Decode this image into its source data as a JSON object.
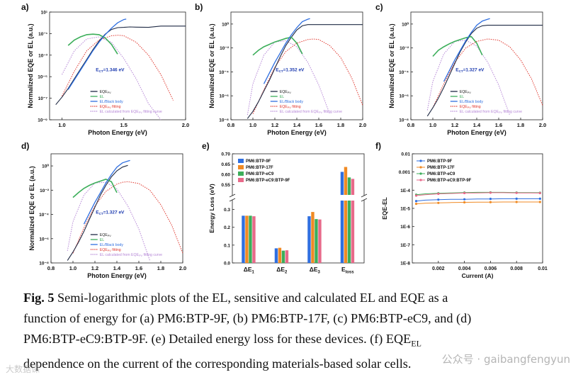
{
  "figure": {
    "caption_prefix": "Fig. 5",
    "caption_line1": " Semi-logarithmic plots of the EL, sensitive and calculated EL and EQE as a",
    "caption_line2": "function of energy for (a) PM6:BTP-9F, (b) PM6:BTP-17F, (c) PM6:BTP-eC9, and (d)",
    "caption_line3_pre": "PM6:BTP-eC9:BTP-9F. (e) Detailed energy loss for these devices. (f) EQE",
    "caption_line3_sub": "EL",
    "caption_line4": "dependence on the current of the corresponding materials-based solar cells.",
    "watermark": "公众号 · gaibangfengyun",
    "watermark2": "大数据课"
  },
  "colors": {
    "eqe": "#1f2a44",
    "el": "#3cae5a",
    "el_bb": "#2f6fe0",
    "fit": "#e0382f",
    "calc": "#b586d6",
    "s1": "#2f6fe0",
    "s2": "#f08a24",
    "s3": "#3cae5a",
    "s4": "#e86a8a"
  },
  "chart_data": [
    {
      "panel": "a",
      "type": "line",
      "scale_y": "log",
      "xlabel": "Photon Energy (eV)",
      "ylabel": "Normalized EQE or EL (a.u.)",
      "xlim": [
        0.9,
        2.0
      ],
      "ylim_exp": [
        -9,
        1
      ],
      "xticks": [
        "1.0",
        "1.5",
        "2.0"
      ],
      "xtick_values": [
        1.0,
        1.5,
        2.0
      ],
      "yticks": [
        "10⁻⁹",
        "10⁻⁷",
        "10⁻⁵",
        "10⁻³",
        "10⁻¹",
        "10¹"
      ],
      "ytick_exps": [
        -9,
        -7,
        -5,
        -3,
        -1,
        1
      ],
      "ect_label": "E",
      "ect_sub": "CT",
      "ect_value": "=1.346 eV",
      "legend": [
        "EQE",
        "EL",
        "EL/Black body",
        "EQE",
        "EL calculated from EQE",
        " fitting curve"
      ],
      "legend_subs": [
        "PV",
        "",
        "",
        "PV",
        "PV",
        ""
      ],
      "legend_suffix": [
        "",
        "",
        "",
        " fitting",
        "",
        ""
      ],
      "eqe_x": [
        0.95,
        1.0,
        1.05,
        1.1,
        1.15,
        1.2,
        1.25,
        1.3,
        1.35,
        1.4,
        1.45,
        1.5,
        1.55,
        1.6,
        1.7,
        1.8,
        1.9,
        2.0
      ],
      "eqe_log": [
        -7.6,
        -6.9,
        -6.1,
        -5.2,
        -4.3,
        -3.4,
        -2.5,
        -1.7,
        -1.05,
        -0.62,
        -0.45,
        -0.42,
        -0.38,
        -0.4,
        -0.42,
        -0.3,
        -0.3,
        -0.3
      ],
      "el_x": [
        1.05,
        1.1,
        1.15,
        1.2,
        1.25,
        1.3,
        1.35,
        1.4,
        1.45
      ],
      "el_log": [
        -2.1,
        -1.6,
        -1.3,
        -1.1,
        -1.05,
        -1.1,
        -1.4,
        -2.0,
        -2.9
      ],
      "elbb_x": [
        1.05,
        1.1,
        1.15,
        1.2,
        1.25,
        1.3,
        1.35,
        1.4,
        1.45,
        1.5,
        1.52
      ],
      "elbb_log": [
        -6.2,
        -5.3,
        -4.4,
        -3.5,
        -2.6,
        -1.8,
        -1.1,
        -0.5,
        0.0,
        0.3,
        0.35
      ],
      "fit_x": [
        1.0,
        1.1,
        1.2,
        1.3,
        1.4,
        1.45,
        1.5,
        1.6,
        1.7,
        1.8,
        1.9
      ],
      "fit_log": [
        -6.8,
        -4.5,
        -2.6,
        -1.6,
        -1.2,
        -1.15,
        -1.2,
        -1.8,
        -3.0,
        -4.8,
        -7.2
      ],
      "calc_x": [
        1.0,
        1.1,
        1.2,
        1.3,
        1.4,
        1.5,
        1.6,
        1.7,
        1.8
      ],
      "calc_log": [
        -4.8,
        -2.6,
        -1.5,
        -1.3,
        -1.8,
        -3.3,
        -5.2,
        -7.5,
        -9.0
      ]
    },
    {
      "panel": "b",
      "type": "line",
      "scale_y": "log",
      "xlabel": "Photon Energy (eV)",
      "ylabel": "Normalized EQE or EL (a.u.)",
      "xlim": [
        0.8,
        2.0
      ],
      "ylim_exp": [
        -8,
        1
      ],
      "xticks": [
        "0.8",
        "1.0",
        "1.2",
        "1.4",
        "1.6",
        "1.8",
        "2.0"
      ],
      "xtick_values": [
        0.8,
        1.0,
        1.2,
        1.4,
        1.6,
        1.8,
        2.0
      ],
      "yticks": [
        "10⁻⁸",
        "10⁻⁶",
        "10⁻⁴",
        "10⁻²",
        "10⁰"
      ],
      "ytick_exps": [
        -8,
        -6,
        -4,
        -2,
        0
      ],
      "ect_label": "E",
      "ect_sub": "CT",
      "ect_value": "=1.352 eV",
      "legend": [
        "EQE",
        "EL",
        "EL/Black body",
        "EQE",
        "EL calculated from EQE",
        " fitting curve"
      ],
      "legend_subs": [
        "PV",
        "",
        "",
        "PV",
        "PV",
        ""
      ],
      "legend_suffix": [
        "",
        "",
        "",
        " fitting",
        "",
        ""
      ],
      "eqe_x": [
        0.95,
        1.0,
        1.05,
        1.1,
        1.15,
        1.2,
        1.25,
        1.3,
        1.35,
        1.4,
        1.45,
        1.5,
        1.6,
        1.7,
        1.8,
        1.9,
        2.0
      ],
      "eqe_log": [
        -7.9,
        -7.3,
        -6.5,
        -5.6,
        -4.7,
        -3.7,
        -2.7,
        -1.8,
        -1.1,
        -0.5,
        -0.15,
        -0.05,
        -0.05,
        -0.05,
        -0.05,
        -0.05,
        -0.05
      ],
      "el_x": [
        1.0,
        1.05,
        1.1,
        1.15,
        1.2,
        1.25,
        1.3,
        1.35,
        1.4,
        1.45
      ],
      "el_log": [
        -2.6,
        -2.2,
        -1.9,
        -1.7,
        -1.5,
        -1.35,
        -1.2,
        -1.1,
        -1.6,
        -2.5
      ],
      "elbb_x": [
        1.1,
        1.15,
        1.2,
        1.25,
        1.3,
        1.35,
        1.4,
        1.45,
        1.5,
        1.52
      ],
      "elbb_log": [
        -5.0,
        -4.1,
        -3.2,
        -2.4,
        -1.6,
        -0.9,
        -0.3,
        0.2,
        0.4,
        0.45
      ],
      "fit_x": [
        1.0,
        1.1,
        1.2,
        1.3,
        1.4,
        1.5,
        1.55,
        1.6,
        1.7,
        1.8,
        1.9,
        2.0
      ],
      "fit_log": [
        -7.5,
        -5.5,
        -3.6,
        -2.3,
        -1.6,
        -1.3,
        -1.25,
        -1.3,
        -1.8,
        -2.8,
        -4.5,
        -6.8
      ],
      "calc_x": [
        0.95,
        1.0,
        1.1,
        1.2,
        1.3,
        1.4,
        1.5,
        1.6,
        1.7
      ],
      "calc_log": [
        -7.6,
        -5.0,
        -2.6,
        -1.5,
        -1.4,
        -1.9,
        -3.2,
        -5.1,
        -7.5
      ]
    },
    {
      "panel": "c",
      "type": "line",
      "scale_y": "log",
      "xlabel": "Photon Energy (eV)",
      "ylabel": "Normalized EQE or EL (a.u.)",
      "xlim": [
        0.8,
        2.0
      ],
      "ylim_exp": [
        -8,
        1
      ],
      "xticks": [
        "0.8",
        "1.0",
        "1.2",
        "1.4",
        "1.6",
        "1.8",
        "2.0"
      ],
      "xtick_values": [
        0.8,
        1.0,
        1.2,
        1.4,
        1.6,
        1.8,
        2.0
      ],
      "yticks": [
        "10⁻⁸",
        "10⁻⁶",
        "10⁻⁴",
        "10⁻²",
        "10⁰"
      ],
      "ytick_exps": [
        -8,
        -6,
        -4,
        -2,
        0
      ],
      "ect_label": "E",
      "ect_sub": "CT",
      "ect_value": "=1.327 eV",
      "legend": [
        "EQE",
        "EL",
        "EL/Black body",
        "EQE",
        "EL calculated from EQE",
        " fitting curve"
      ],
      "legend_subs": [
        "PV",
        "",
        "",
        "PV",
        "PV",
        ""
      ],
      "legend_suffix": [
        "",
        "",
        "",
        " fitting",
        "",
        ""
      ],
      "eqe_x": [
        0.95,
        1.0,
        1.05,
        1.1,
        1.15,
        1.2,
        1.25,
        1.3,
        1.35,
        1.4,
        1.45,
        1.5,
        1.6,
        1.7,
        1.8,
        1.9,
        2.0
      ],
      "eqe_log": [
        -7.7,
        -7.0,
        -6.2,
        -5.3,
        -4.3,
        -3.3,
        -2.3,
        -1.5,
        -0.8,
        -0.35,
        -0.15,
        -0.1,
        -0.1,
        -0.1,
        -0.1,
        -0.1,
        -0.1
      ],
      "el_x": [
        1.0,
        1.05,
        1.1,
        1.15,
        1.2,
        1.25,
        1.3,
        1.35,
        1.4,
        1.45
      ],
      "el_log": [
        -2.7,
        -2.2,
        -1.9,
        -1.65,
        -1.45,
        -1.3,
        -1.15,
        -1.05,
        -1.6,
        -2.6
      ],
      "elbb_x": [
        1.1,
        1.15,
        1.2,
        1.25,
        1.3,
        1.35,
        1.4,
        1.45,
        1.5,
        1.52
      ],
      "elbb_log": [
        -4.8,
        -3.9,
        -3.0,
        -2.2,
        -1.4,
        -0.7,
        -0.1,
        0.25,
        0.4,
        0.45
      ],
      "fit_x": [
        1.0,
        1.1,
        1.2,
        1.3,
        1.4,
        1.5,
        1.6,
        1.7,
        1.8,
        1.9,
        2.0
      ],
      "fit_log": [
        -7.0,
        -5.0,
        -3.2,
        -2.0,
        -1.45,
        -1.25,
        -1.35,
        -1.9,
        -3.0,
        -4.6,
        -6.8
      ],
      "calc_x": [
        0.95,
        1.0,
        1.1,
        1.2,
        1.3,
        1.4,
        1.5,
        1.6,
        1.7
      ],
      "calc_log": [
        -7.2,
        -4.8,
        -2.5,
        -1.45,
        -1.35,
        -1.85,
        -3.2,
        -5.1,
        -7.6
      ]
    },
    {
      "panel": "d",
      "type": "line",
      "scale_y": "log",
      "xlabel": "Photon Energy (eV)",
      "ylabel": "Normalized EQE or EL (a.u.)",
      "xlim": [
        0.8,
        2.0
      ],
      "ylim_exp": [
        -8,
        1
      ],
      "xticks": [
        "0.8",
        "1.0",
        "1.2",
        "1.4",
        "1.6",
        "1.8",
        "2.0"
      ],
      "xtick_values": [
        0.8,
        1.0,
        1.2,
        1.4,
        1.6,
        1.8,
        2.0
      ],
      "yticks": [
        "10⁻⁸",
        "10⁻⁶",
        "10⁻⁴",
        "10⁻²",
        "10⁰"
      ],
      "ytick_exps": [
        -8,
        -6,
        -4,
        -2,
        0
      ],
      "ect_label": "E",
      "ect_sub": "CT",
      "ect_value": "=1.327 eV",
      "legend": [
        "EQE",
        "EL",
        "EL/Black body",
        "EQE",
        "EL calculated from EQE",
        " fitting curve"
      ],
      "legend_subs": [
        "PV",
        "",
        "",
        "PV",
        "PV",
        ""
      ],
      "legend_suffix": [
        "",
        "",
        "",
        " fitting",
        "",
        ""
      ],
      "eqe_x": [
        0.95,
        1.0,
        1.05,
        1.1,
        1.15,
        1.2,
        1.25,
        1.3,
        1.35,
        1.4,
        1.45,
        1.5
      ],
      "eqe_log": [
        -7.8,
        -7.1,
        -6.3,
        -5.4,
        -4.4,
        -3.4,
        -2.4,
        -1.6,
        -0.9,
        -0.4,
        -0.1,
        0.05
      ],
      "el_x": [
        1.0,
        1.05,
        1.1,
        1.15,
        1.2,
        1.25,
        1.3,
        1.35,
        1.4
      ],
      "el_log": [
        -2.6,
        -2.2,
        -1.85,
        -1.6,
        -1.4,
        -1.25,
        -1.1,
        -1.3,
        -2.2
      ],
      "elbb_x": [
        1.1,
        1.15,
        1.2,
        1.25,
        1.3,
        1.35,
        1.4,
        1.45,
        1.5,
        1.52
      ],
      "elbb_log": [
        -4.8,
        -3.9,
        -3.0,
        -2.2,
        -1.4,
        -0.7,
        -0.1,
        0.25,
        0.4,
        0.45
      ],
      "fit_x": [
        1.0,
        1.1,
        1.2,
        1.3,
        1.4,
        1.45,
        1.5,
        1.6,
        1.7,
        1.8,
        1.9,
        2.0
      ],
      "fit_log": [
        -7.2,
        -5.1,
        -3.3,
        -2.1,
        -1.5,
        -1.35,
        -1.3,
        -1.45,
        -2.0,
        -3.2,
        -4.9,
        -7.2
      ],
      "calc_x": [
        0.95,
        1.0,
        1.1,
        1.2,
        1.3,
        1.4,
        1.5,
        1.6,
        1.7
      ],
      "calc_log": [
        -7.0,
        -4.6,
        -2.4,
        -1.4,
        -1.35,
        -1.9,
        -3.3,
        -5.2,
        -7.8
      ]
    },
    {
      "panel": "e",
      "type": "bar",
      "ylabel": "Energy Loss (eV)",
      "categories": [
        "ΔE",
        "ΔE",
        "ΔE",
        "E"
      ],
      "category_subs": [
        "1",
        "2",
        "3",
        "loss"
      ],
      "series": [
        {
          "name": "PM6:BTP-9F",
          "values": [
            0.265,
            0.082,
            0.262,
            0.612
          ]
        },
        {
          "name": "PM6:BTP-17F",
          "values": [
            0.265,
            0.085,
            0.286,
            0.636
          ]
        },
        {
          "name": "PM6:BTP-eC9",
          "values": [
            0.265,
            0.069,
            0.246,
            0.585
          ]
        },
        {
          "name": "PM6:BTP-eC9:BTP-9F",
          "values": [
            0.262,
            0.071,
            0.244,
            0.578
          ]
        }
      ],
      "ylim_low": [
        0,
        0.35
      ],
      "ylim_high": [
        0.5,
        0.7
      ],
      "axis_break": true,
      "yticks_low": [
        "0.0",
        "0.1",
        "0.2",
        "0.3"
      ],
      "ytick_low_values": [
        0,
        0.1,
        0.2,
        0.3
      ],
      "yticks_high": [
        "0.55",
        "0.60",
        "0.65",
        "0.70"
      ],
      "ytick_high_values": [
        0.55,
        0.6,
        0.65,
        0.7
      ]
    },
    {
      "panel": "f",
      "type": "line",
      "scale_y": "log",
      "xlabel": "Current (A)",
      "ylabel": "EQE-EL",
      "xlim": [
        0.0,
        0.01
      ],
      "ylim_exp": [
        -8,
        -2
      ],
      "xticks": [
        "0.002",
        "0.004",
        "0.006",
        "0.008",
        "0.01"
      ],
      "xtick_values": [
        0.002,
        0.004,
        0.006,
        0.008,
        0.01
      ],
      "yticks": [
        "1E-8",
        "1E-7",
        "1E-6",
        "1E-5",
        "1E-4",
        "0.001",
        "0.01"
      ],
      "ytick_exps": [
        -8,
        -7,
        -6,
        -5,
        -4,
        -3,
        -2
      ],
      "series": [
        {
          "name": "PM6:BTP-9F",
          "x": [
            0.0003,
            0.001,
            0.002,
            0.003,
            0.004,
            0.005,
            0.006,
            0.007,
            0.008,
            0.009,
            0.0098
          ],
          "log_values": [
            -4.6,
            -4.55,
            -4.52,
            -4.5,
            -4.5,
            -4.48,
            -4.48,
            -4.47,
            -4.47,
            -4.47,
            -4.47
          ]
        },
        {
          "name": "PM6:BTP-17F",
          "x": [
            0.0003,
            0.001,
            0.002,
            0.003,
            0.004,
            0.005,
            0.006,
            0.007,
            0.008,
            0.009,
            0.0098
          ],
          "log_values": [
            -4.75,
            -4.72,
            -4.7,
            -4.68,
            -4.67,
            -4.66,
            -4.66,
            -4.65,
            -4.65,
            -4.65,
            -4.65
          ]
        },
        {
          "name": "PM6:BTP-eC9",
          "x": [
            0.0003,
            0.001,
            0.002,
            0.003,
            0.004,
            0.005,
            0.006,
            0.007,
            0.008,
            0.009,
            0.0098
          ],
          "log_values": [
            -4.25,
            -4.2,
            -4.17,
            -4.15,
            -4.13,
            -4.12,
            -4.12,
            -4.12,
            -4.13,
            -4.13,
            -4.14
          ]
        },
        {
          "name": "PM6:BTP-eC9:BTP-9F",
          "x": [
            0.0003,
            0.001,
            0.002,
            0.003,
            0.004,
            0.005,
            0.006,
            0.007,
            0.008,
            0.009,
            0.0098
          ],
          "log_values": [
            -4.3,
            -4.25,
            -4.2,
            -4.18,
            -4.16,
            -4.15,
            -4.14,
            -4.14,
            -4.15,
            -4.15,
            -4.16
          ]
        }
      ]
    }
  ]
}
